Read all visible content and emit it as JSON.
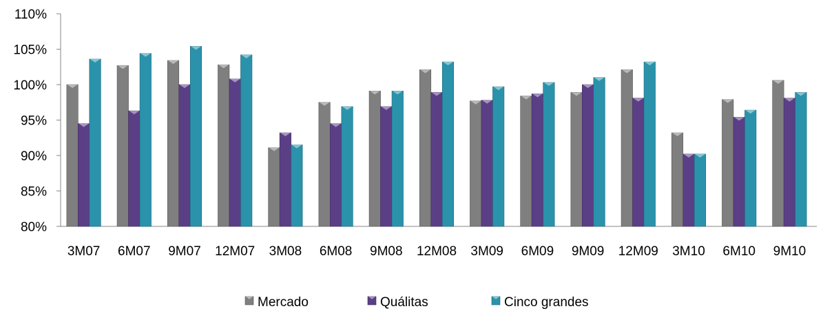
{
  "chart_data": {
    "type": "bar",
    "categories": [
      "3M07",
      "6M07",
      "9M07",
      "12M07",
      "3M08",
      "6M08",
      "9M08",
      "12M08",
      "3M09",
      "6M09",
      "9M09",
      "12M09",
      "3M10",
      "6M10",
      "9M10"
    ],
    "series": [
      {
        "name": "Mercado",
        "values": [
          100.0,
          102.7,
          103.4,
          102.8,
          91.1,
          97.5,
          99.1,
          102.1,
          97.7,
          98.4,
          98.9,
          102.1,
          93.2,
          97.9,
          100.6
        ]
      },
      {
        "name": "Quálitas",
        "values": [
          94.5,
          96.3,
          100.0,
          100.8,
          93.2,
          94.5,
          96.9,
          98.9,
          97.8,
          98.7,
          100.0,
          98.1,
          90.2,
          95.4,
          98.1
        ]
      },
      {
        "name": "Cinco grandes",
        "values": [
          103.6,
          104.4,
          105.4,
          104.2,
          91.5,
          96.9,
          99.1,
          103.2,
          99.7,
          100.3,
          101.0,
          103.2,
          90.2,
          96.4,
          98.9
        ]
      }
    ],
    "ylim": [
      80,
      110
    ],
    "yticks": [
      "80%",
      "85%",
      "90%",
      "95%",
      "100%",
      "105%",
      "110%"
    ],
    "title": "",
    "xlabel": "",
    "ylabel": "",
    "grid": false,
    "legend_position": "bottom",
    "colors": [
      "#7f7f7f",
      "#5b3f86",
      "#2a93ab"
    ]
  }
}
